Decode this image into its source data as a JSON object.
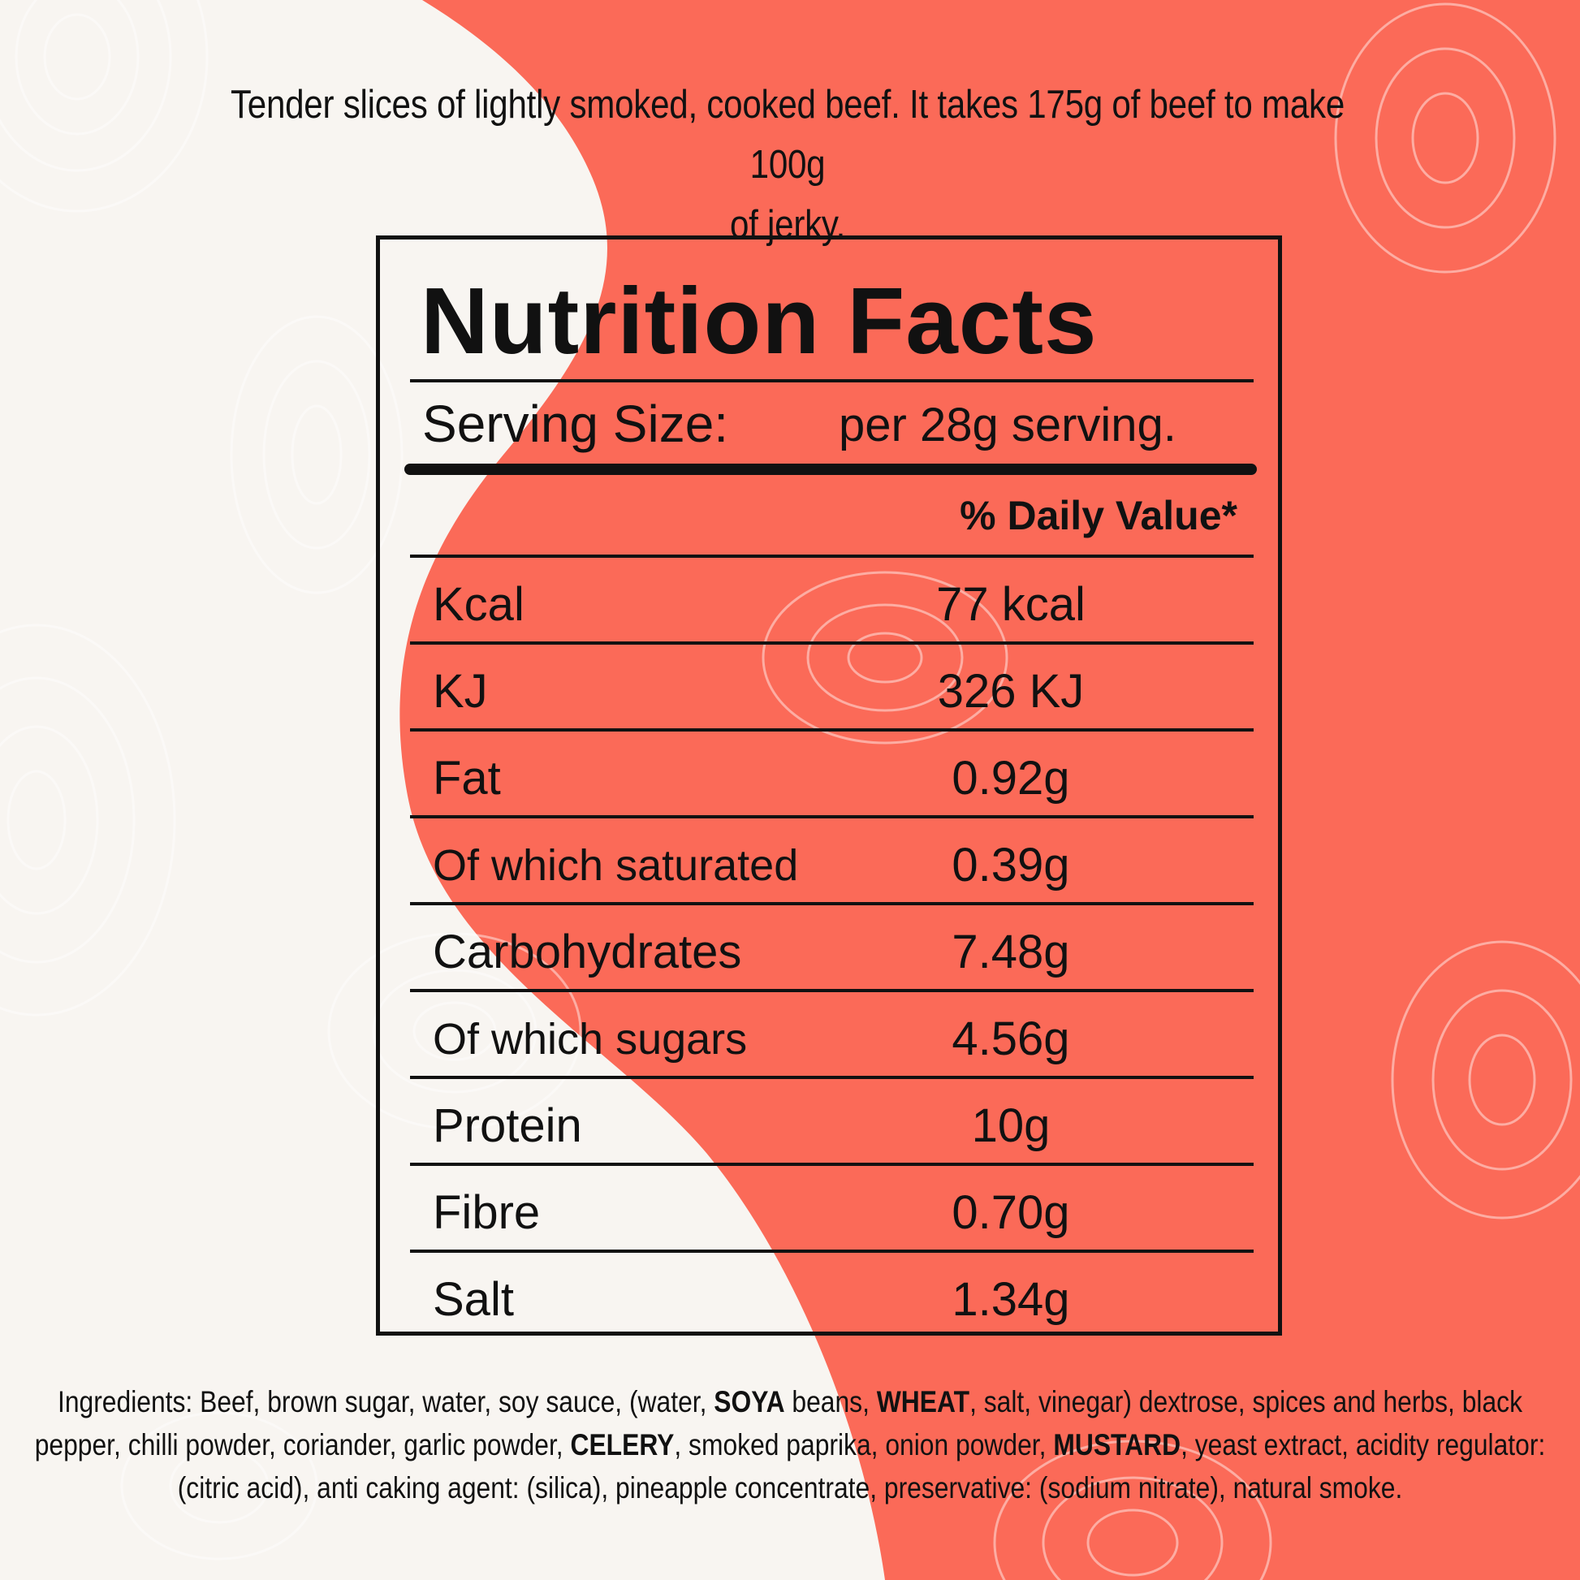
{
  "colors": {
    "background": "#f8f5f1",
    "accent": "#fb6a58",
    "pattern_line": "#ffffff",
    "text": "#111111"
  },
  "intro": {
    "line1": "Tender slices of lightly smoked, cooked beef. It takes 175g of beef to make 100g",
    "line2": "of jerky."
  },
  "label": {
    "title": "Nutrition Facts",
    "serving_label": "Serving Size:",
    "serving_value": "per 28g serving.",
    "dv_header": "% Daily Value*",
    "rows": [
      {
        "name": "Kcal",
        "value": "77 kcal"
      },
      {
        "name": "KJ",
        "value": "326 KJ"
      },
      {
        "name": "Fat",
        "value": "0.92g"
      },
      {
        "name": "Of which saturated",
        "value": "0.39g"
      },
      {
        "name": "Carbohydrates",
        "value": "7.48g"
      },
      {
        "name": "Of which sugars",
        "value": "4.56g"
      },
      {
        "name": "Protein",
        "value": "10g"
      },
      {
        "name": "Fibre",
        "value": "0.70g"
      },
      {
        "name": "Salt",
        "value": "1.34g"
      }
    ]
  },
  "ingredients": {
    "p1": "Ingredients: Beef, brown sugar, water, soy sauce, (water, ",
    "a1": "SOYA",
    "p2": " beans, ",
    "a2": "WHEAT",
    "p3": ", salt, vinegar) dextrose, spices and herbs, black pepper, chilli powder, coriander, garlic powder, ",
    "a3": "CELERY",
    "p4": ", smoked paprika, onion powder, ",
    "a4": "MUSTARD",
    "p5": ", yeast extract, acidity regulator: (citric acid), anti caking agent: (silica), pineapple concentrate, preservative: (sodium nitrate), natural smoke."
  }
}
